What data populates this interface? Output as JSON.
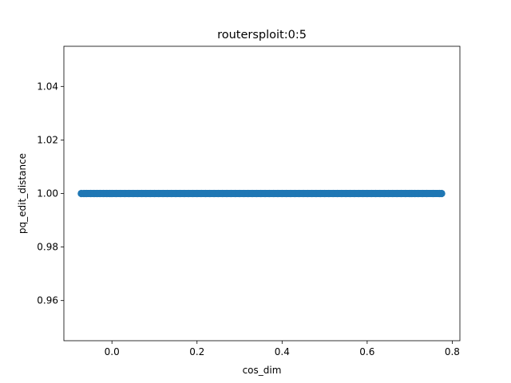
{
  "chart_data": {
    "type": "scatter",
    "title": "routersploit:0:5",
    "xlabel": "cos_dim",
    "ylabel": "pq_edit_distance",
    "xlim": [
      -0.113,
      0.818
    ],
    "ylim": [
      0.945,
      1.055
    ],
    "xticks": [
      0.0,
      0.2,
      0.4,
      0.6,
      0.8
    ],
    "xtick_labels": [
      "0.0",
      "0.2",
      "0.4",
      "0.6",
      "0.8"
    ],
    "yticks": [
      0.96,
      0.98,
      1.0,
      1.02,
      1.04
    ],
    "ytick_labels": [
      "0.96",
      "0.98",
      "1.00",
      "1.02",
      "1.04"
    ],
    "grid": false,
    "series": [
      {
        "color": "#1f77b4",
        "x_range": [
          -0.072,
          0.775
        ],
        "x": [
          -0.072,
          -0.066,
          -0.06,
          -0.05,
          -0.042,
          -0.035,
          -0.028,
          -0.02,
          -0.012,
          -0.005,
          0.0,
          0.01,
          0.02,
          0.03,
          0.04,
          0.05,
          0.06,
          0.07,
          0.08,
          0.09,
          0.1,
          0.11,
          0.12,
          0.13,
          0.14,
          0.15,
          0.16,
          0.17,
          0.18,
          0.19,
          0.2,
          0.21,
          0.22,
          0.23,
          0.24,
          0.25,
          0.26,
          0.27,
          0.28,
          0.29,
          0.3,
          0.31,
          0.32,
          0.33,
          0.34,
          0.35,
          0.36,
          0.37,
          0.38,
          0.39,
          0.4,
          0.41,
          0.42,
          0.43,
          0.44,
          0.45,
          0.46,
          0.47,
          0.48,
          0.49,
          0.5,
          0.51,
          0.52,
          0.53,
          0.54,
          0.55,
          0.56,
          0.57,
          0.58,
          0.59,
          0.6,
          0.61,
          0.62,
          0.63,
          0.64,
          0.65,
          0.66,
          0.67,
          0.68,
          0.69,
          0.7,
          0.705,
          0.712,
          0.72,
          0.73,
          0.74,
          0.755,
          0.77,
          0.775
        ],
        "y_value": 1.0
      }
    ]
  }
}
